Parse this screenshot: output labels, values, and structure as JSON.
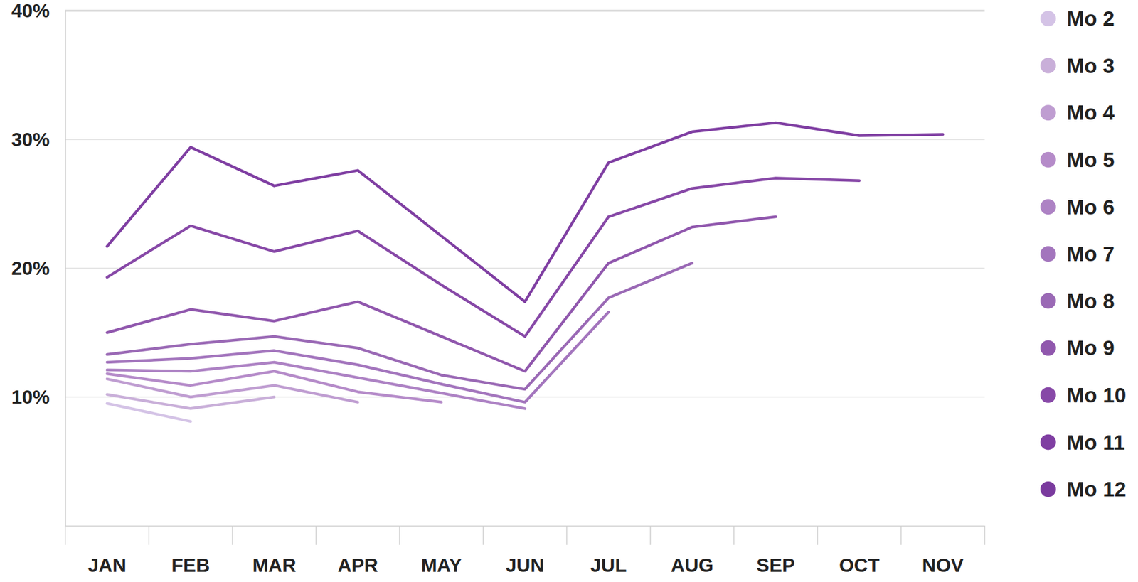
{
  "chart_data": {
    "type": "line",
    "categories": [
      "JAN",
      "FEB",
      "MAR",
      "APR",
      "MAY",
      "JUN",
      "JUL",
      "AUG",
      "SEP",
      "OCT",
      "NOV"
    ],
    "ylim": [
      0,
      40
    ],
    "yticks": [
      {
        "value": 10,
        "label": "10%"
      },
      {
        "value": 20,
        "label": "20%"
      },
      {
        "value": 30,
        "label": "30%"
      },
      {
        "value": 40,
        "label": "40%"
      }
    ],
    "grid": true,
    "legend": "right",
    "series": [
      {
        "name": "Mo 2",
        "color": "#d4c3e6",
        "values": [
          9.5,
          8.1,
          null,
          null,
          null,
          null,
          null,
          null,
          null,
          null,
          null
        ]
      },
      {
        "name": "Mo 3",
        "color": "#c9afd9",
        "values": [
          10.2,
          9.1,
          10.0,
          null,
          null,
          null,
          null,
          null,
          null,
          null,
          null
        ]
      },
      {
        "name": "Mo 4",
        "color": "#bf9dd1",
        "values": [
          11.4,
          10.0,
          10.9,
          9.6,
          null,
          null,
          null,
          null,
          null,
          null,
          null
        ]
      },
      {
        "name": "Mo 5",
        "color": "#b58bc9",
        "values": [
          11.8,
          10.9,
          12.0,
          10.4,
          9.6,
          null,
          null,
          null,
          null,
          null,
          null
        ]
      },
      {
        "name": "Mo 6",
        "color": "#ad82c4",
        "values": [
          12.1,
          12.0,
          12.7,
          11.5,
          10.3,
          9.1,
          null,
          null,
          null,
          null,
          null
        ]
      },
      {
        "name": "Mo 7",
        "color": "#a375bd",
        "values": [
          12.7,
          13.0,
          13.6,
          12.5,
          11.0,
          9.6,
          16.6,
          null,
          null,
          null,
          null
        ]
      },
      {
        "name": "Mo 8",
        "color": "#9a69b5",
        "values": [
          13.3,
          14.1,
          14.7,
          13.8,
          11.7,
          10.6,
          17.7,
          20.4,
          null,
          null,
          null
        ]
      },
      {
        "name": "Mo 9",
        "color": "#9057ad",
        "values": [
          15.0,
          16.8,
          15.9,
          17.4,
          14.7,
          12.0,
          20.4,
          23.2,
          24.0,
          null,
          null
        ]
      },
      {
        "name": "Mo 10",
        "color": "#8748a7",
        "values": [
          19.3,
          23.3,
          21.3,
          22.9,
          18.7,
          14.7,
          24.0,
          26.2,
          27.0,
          26.8,
          null
        ]
      },
      {
        "name": "Mo 11",
        "color": "#7f3ea2",
        "values": [
          21.7,
          29.4,
          26.4,
          27.6,
          22.5,
          17.4,
          28.2,
          30.6,
          31.3,
          30.3,
          30.4
        ]
      },
      {
        "name": "Mo 12",
        "color": "#7a3a9e",
        "values": [
          null,
          null,
          null,
          null,
          null,
          null,
          null,
          null,
          null,
          null,
          null
        ]
      }
    ]
  }
}
